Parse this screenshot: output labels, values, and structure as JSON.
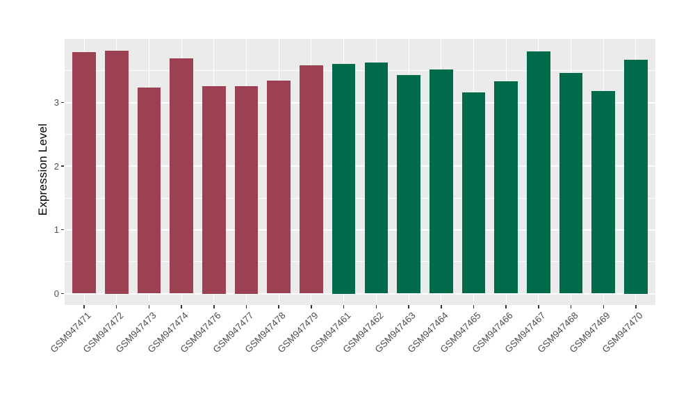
{
  "chart_data": {
    "type": "bar",
    "title": "",
    "xlabel": "",
    "ylabel": "Expression Level",
    "legend_position": "none",
    "grid": "major and minor horizontal white gridlines, vertical white gridline at each category center, gray panel",
    "panel_background": "#EBEBEB",
    "gridline_color": "#FFFFFF",
    "axis_text_color": "#4d4d4d",
    "ylim": [
      -0.18,
      4.0
    ],
    "yticks": [
      0,
      1,
      2,
      3
    ],
    "group_colors": {
      "group1": "#9C4151",
      "group2": "#006B4A"
    },
    "bars": [
      {
        "label": "GSM947471",
        "value": 3.79,
        "group": "group1"
      },
      {
        "label": "GSM947472",
        "value": 3.81,
        "group": "group1"
      },
      {
        "label": "GSM947473",
        "value": 3.24,
        "group": "group1"
      },
      {
        "label": "GSM947474",
        "value": 3.69,
        "group": "group1"
      },
      {
        "label": "GSM947476",
        "value": 3.26,
        "group": "group1"
      },
      {
        "label": "GSM947477",
        "value": 3.26,
        "group": "group1"
      },
      {
        "label": "GSM947478",
        "value": 3.35,
        "group": "group1"
      },
      {
        "label": "GSM947479",
        "value": 3.58,
        "group": "group1"
      },
      {
        "label": "GSM947461",
        "value": 3.61,
        "group": "group2"
      },
      {
        "label": "GSM947462",
        "value": 3.63,
        "group": "group2"
      },
      {
        "label": "GSM947463",
        "value": 3.43,
        "group": "group2"
      },
      {
        "label": "GSM947464",
        "value": 3.52,
        "group": "group2"
      },
      {
        "label": "GSM947465",
        "value": 3.16,
        "group": "group2"
      },
      {
        "label": "GSM947466",
        "value": 3.33,
        "group": "group2"
      },
      {
        "label": "GSM947467",
        "value": 3.8,
        "group": "group2"
      },
      {
        "label": "GSM947468",
        "value": 3.47,
        "group": "group2"
      },
      {
        "label": "GSM947469",
        "value": 3.18,
        "group": "group2"
      },
      {
        "label": "GSM947470",
        "value": 3.67,
        "group": "group2"
      }
    ]
  }
}
